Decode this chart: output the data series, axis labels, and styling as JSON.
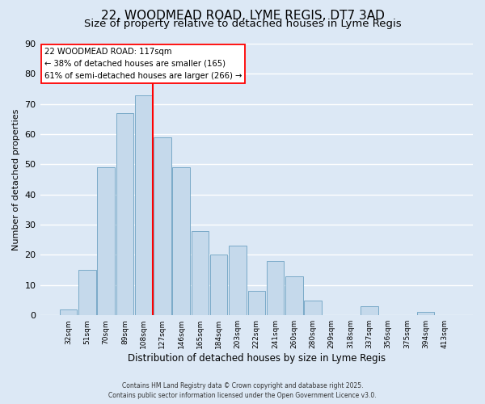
{
  "title": "22, WOODMEAD ROAD, LYME REGIS, DT7 3AD",
  "subtitle": "Size of property relative to detached houses in Lyme Regis",
  "xlabel": "Distribution of detached houses by size in Lyme Regis",
  "ylabel": "Number of detached properties",
  "footnote1": "Contains HM Land Registry data © Crown copyright and database right 2025.",
  "footnote2": "Contains public sector information licensed under the Open Government Licence v3.0.",
  "bar_labels": [
    "32sqm",
    "51sqm",
    "70sqm",
    "89sqm",
    "108sqm",
    "127sqm",
    "146sqm",
    "165sqm",
    "184sqm",
    "203sqm",
    "222sqm",
    "241sqm",
    "260sqm",
    "280sqm",
    "299sqm",
    "318sqm",
    "337sqm",
    "356sqm",
    "375sqm",
    "394sqm",
    "413sqm"
  ],
  "bar_values": [
    2,
    15,
    49,
    67,
    73,
    59,
    49,
    28,
    20,
    23,
    8,
    18,
    13,
    5,
    0,
    0,
    3,
    0,
    0,
    1,
    0
  ],
  "bar_color": "#c5d9eb",
  "bar_edge_color": "#7aaac8",
  "vline_x": 4.5,
  "vline_color": "red",
  "annotation_line1": "22 WOODMEAD ROAD: 117sqm",
  "annotation_line2": "← 38% of detached houses are smaller (165)",
  "annotation_line3": "61% of semi-detached houses are larger (266) →",
  "annotation_box_facecolor": "white",
  "annotation_box_edgecolor": "red",
  "ylim": [
    0,
    90
  ],
  "yticks": [
    0,
    10,
    20,
    30,
    40,
    50,
    60,
    70,
    80,
    90
  ],
  "background_color": "#dce8f5",
  "grid_color": "white",
  "title_fontsize": 11,
  "subtitle_fontsize": 9.5
}
